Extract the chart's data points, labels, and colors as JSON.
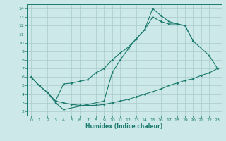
{
  "line1_x": [
    0,
    1,
    2,
    3,
    4,
    9,
    10,
    11,
    12,
    13,
    14,
    15,
    16,
    17,
    18,
    19,
    20
  ],
  "line1_y": [
    6.0,
    5.0,
    4.2,
    3.0,
    2.2,
    3.2,
    6.5,
    8.0,
    9.3,
    10.5,
    11.5,
    14.0,
    13.2,
    12.5,
    12.2,
    12.0,
    10.2
  ],
  "line2_x": [
    0,
    1,
    2,
    3,
    4,
    5,
    6,
    7,
    8,
    9,
    10,
    11,
    12,
    13,
    14,
    15,
    16,
    17,
    18,
    19,
    20,
    22,
    23
  ],
  "line2_y": [
    6.0,
    5.0,
    4.2,
    3.2,
    5.2,
    5.3,
    5.5,
    5.7,
    6.5,
    7.0,
    8.0,
    8.8,
    9.5,
    10.5,
    11.5,
    13.0,
    12.5,
    12.2,
    12.2,
    12.0,
    10.2,
    8.5,
    7.0
  ],
  "line3_x": [
    0,
    1,
    2,
    3,
    4,
    5,
    6,
    7,
    8,
    9,
    10,
    11,
    12,
    13,
    14,
    15,
    16,
    17,
    18,
    19,
    20,
    21,
    22,
    23
  ],
  "line3_y": [
    6.0,
    5.0,
    4.2,
    3.2,
    3.0,
    2.8,
    2.7,
    2.7,
    2.7,
    2.8,
    3.0,
    3.2,
    3.4,
    3.7,
    4.0,
    4.3,
    4.6,
    5.0,
    5.3,
    5.6,
    5.8,
    6.2,
    6.5,
    7.0
  ],
  "color": "#1a7a6e",
  "bg_color": "#cce8e8",
  "grid_color": "#aacccc",
  "xlabel": "Humidex (Indice chaleur)",
  "xlim": [
    -0.5,
    23.5
  ],
  "ylim": [
    1.5,
    14.5
  ],
  "yticks": [
    2,
    3,
    4,
    5,
    6,
    7,
    8,
    9,
    10,
    11,
    12,
    13,
    14
  ],
  "xticks": [
    0,
    1,
    2,
    3,
    4,
    5,
    6,
    7,
    8,
    9,
    10,
    11,
    12,
    13,
    14,
    15,
    16,
    17,
    18,
    19,
    20,
    21,
    22,
    23
  ]
}
